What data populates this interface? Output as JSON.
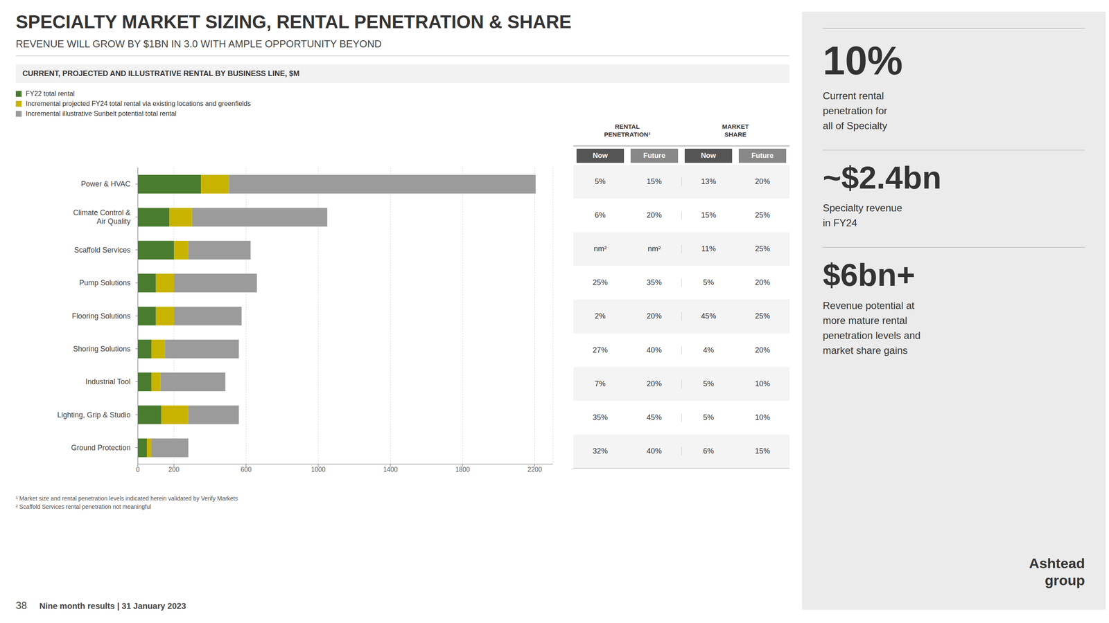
{
  "chart_data": {
    "type": "bar",
    "orientation": "horizontal",
    "stacked": true,
    "grid": true,
    "legend": "upper left",
    "title": "SPECIALTY MARKET SIZING, RENTAL PENETRATION & SHARE",
    "subtitle": "REVENUE WILL GROW BY $1BN IN 3.0 WITH AMPLE OPPORTUNITY BEYOND",
    "annotations": [
      "CURRENT, PROJECTED AND ILLUSTRATIVE RENTAL BY BUSINESS LINE, $M"
    ],
    "categories": [
      "Power & HVAC",
      "Climate Control &\nAir Quality",
      "Scaffold Services",
      "Pump Solutions",
      "Flooring Solutions",
      "Shoring Solutions",
      "Industrial Tool",
      "Lighting, Grip & Studio",
      "Ground Protection"
    ],
    "series": [
      {
        "name": "FY22 total rental",
        "color": "#4a7c2f",
        "values": [
          350,
          175,
          200,
          100,
          100,
          75,
          75,
          130,
          50
        ]
      },
      {
        "name": "Incremental projected FY24 total rental via existing locations and greenfields",
        "color": "#c8b400",
        "values": [
          155,
          125,
          80,
          100,
          100,
          75,
          50,
          150,
          25
        ]
      },
      {
        "name": "Incremental illustrative Sunbelt potential total rental",
        "color": "#9b9b9b",
        "values": [
          1700,
          750,
          345,
          460,
          375,
          410,
          360,
          280,
          205
        ]
      }
    ],
    "xlim": [
      0,
      2300
    ],
    "xticks": [
      0,
      200,
      600,
      1000,
      1400,
      1800,
      2200
    ],
    "table": {
      "groups": [
        {
          "label": "RENTAL\nPENETRATION¹",
          "columns": [
            {
              "label": "Now",
              "values": [
                "5%",
                "6%",
                "nm²",
                "25%",
                "2%",
                "27%",
                "7%",
                "35%",
                "32%"
              ]
            },
            {
              "label": "Future",
              "values": [
                "15%",
                "20%",
                "nm²",
                "35%",
                "20%",
                "40%",
                "20%",
                "45%",
                "40%"
              ]
            }
          ]
        },
        {
          "label": "MARKET\nSHARE",
          "columns": [
            {
              "label": "Now",
              "values": [
                "13%",
                "15%",
                "11%",
                "5%",
                "45%",
                "4%",
                "5%",
                "5%",
                "6%"
              ]
            },
            {
              "label": "Future",
              "values": [
                "20%",
                "25%",
                "25%",
                "20%",
                "25%",
                "20%",
                "10%",
                "10%",
                "15%"
              ]
            }
          ]
        }
      ]
    },
    "stats": [
      {
        "value": "10%",
        "label": "Current rental\npenetration for\nall of Specialty"
      },
      {
        "value": "~$2.4bn",
        "label": "Specialty revenue\nin FY24"
      },
      {
        "value": "$6bn+",
        "label": "Revenue potential at\nmore mature rental\npenetration levels and\nmarket share gains"
      }
    ],
    "logo": "Ashtead\ngroup",
    "footnotes": [
      "¹ Market size and rental penetration levels indicated herein validated by ​Verify Markets",
      "² Scaffold Services rental penetration not meaningful"
    ],
    "footer": {
      "slide_number": "38",
      "text": "Nine month results | 31 January 2023"
    }
  }
}
